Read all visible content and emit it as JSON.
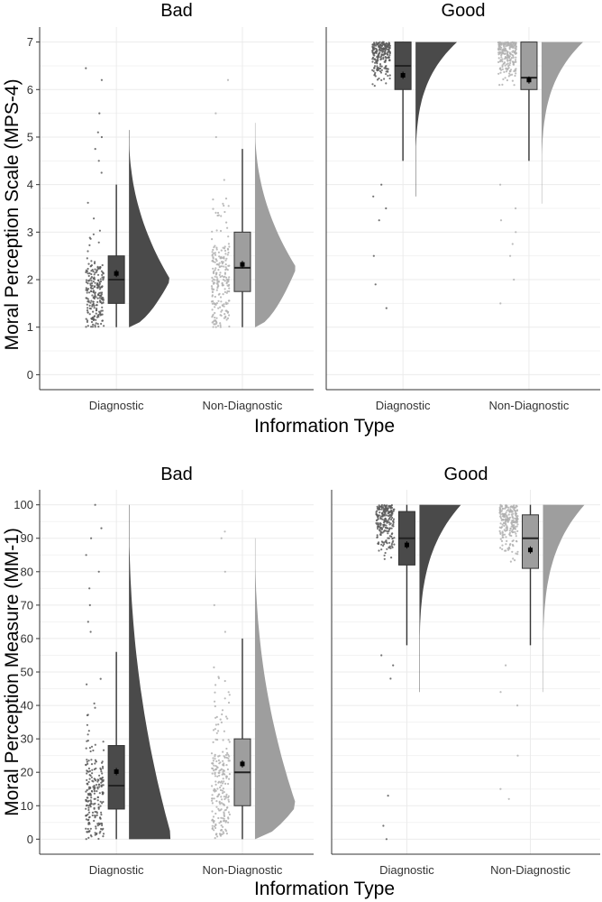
{
  "chart_data": [
    {
      "type": "raincloud",
      "ylabel": "Moral Perception Scale (MPS-4)",
      "xlabel": "Information Type",
      "ylim": [
        0,
        7
      ],
      "yticks": [
        0,
        1,
        2,
        3,
        4,
        5,
        6,
        7
      ],
      "categories": [
        "Diagnostic",
        "Non-Diagnostic"
      ],
      "facets": [
        {
          "title": "Bad",
          "groups": [
            {
              "category": "Diagnostic",
              "color": "#4a4a4a",
              "q1": 1.5,
              "median": 2.0,
              "q3": 2.5,
              "whisker_low": 1.0,
              "whisker_high": 4.0,
              "mean": 2.13,
              "density_min": 1.0,
              "density_max": 5.15,
              "density_peak": 2.0,
              "outliers": [
                4.25,
                4.5,
                4.75,
                5.0,
                5.1,
                5.5,
                6.2,
                6.45
              ]
            },
            {
              "category": "Non-Diagnostic",
              "color": "#9e9e9e",
              "q1": 1.75,
              "median": 2.25,
              "q3": 3.0,
              "whisker_low": 1.0,
              "whisker_high": 4.75,
              "mean": 2.32,
              "density_min": 1.0,
              "density_max": 5.3,
              "density_peak": 2.25,
              "outliers": [
                5.0,
                5.5,
                6.2
              ]
            }
          ]
        },
        {
          "title": "Good",
          "groups": [
            {
              "category": "Diagnostic",
              "color": "#4a4a4a",
              "q1": 6.0,
              "median": 6.5,
              "q3": 7.0,
              "whisker_low": 4.5,
              "whisker_high": 7.0,
              "mean": 6.3,
              "density_min": 3.75,
              "density_max": 7.0,
              "density_peak": 7.0,
              "outliers": [
                1.4,
                1.9,
                2.5,
                3.25,
                3.5,
                3.75,
                4.0
              ]
            },
            {
              "category": "Non-Diagnostic",
              "color": "#9e9e9e",
              "q1": 6.0,
              "median": 6.25,
              "q3": 7.0,
              "whisker_low": 4.5,
              "whisker_high": 7.0,
              "mean": 6.2,
              "density_min": 3.6,
              "density_max": 7.0,
              "density_peak": 7.0,
              "outliers": [
                1.5,
                2.0,
                2.5,
                2.75,
                3.0,
                3.25,
                3.5,
                4.0
              ]
            }
          ]
        }
      ]
    },
    {
      "type": "raincloud",
      "ylabel": "Moral Perception Measure (MM-1)",
      "xlabel": "Information Type",
      "ylim": [
        0,
        100
      ],
      "yticks": [
        0,
        10,
        20,
        30,
        40,
        50,
        60,
        70,
        80,
        90,
        100
      ],
      "categories": [
        "Diagnostic",
        "Non-Diagnostic"
      ],
      "facets": [
        {
          "title": "Bad",
          "groups": [
            {
              "category": "Diagnostic",
              "color": "#4a4a4a",
              "q1": 9,
              "median": 16,
              "q3": 28,
              "whisker_low": 0,
              "whisker_high": 56,
              "mean": 20.2,
              "density_min": 0,
              "density_max": 100,
              "density_peak": 2,
              "outliers": [
                62,
                65,
                70,
                75,
                80,
                85,
                90,
                93,
                100
              ]
            },
            {
              "category": "Non-Diagnostic",
              "color": "#9e9e9e",
              "q1": 10,
              "median": 20,
              "q3": 30,
              "whisker_low": 0,
              "whisker_high": 60,
              "mean": 22.5,
              "density_min": 0,
              "density_max": 90,
              "density_peak": 10,
              "outliers": [
                62,
                70,
                80,
                90,
                92
              ]
            }
          ]
        },
        {
          "title": "Good",
          "groups": [
            {
              "category": "Diagnostic",
              "color": "#4a4a4a",
              "q1": 82,
              "median": 90,
              "q3": 98,
              "whisker_low": 58,
              "whisker_high": 100,
              "mean": 88,
              "density_min": 44,
              "density_max": 100,
              "density_peak": 100,
              "outliers": [
                0,
                4,
                13,
                48,
                52,
                55
              ]
            },
            {
              "category": "Non-Diagnostic",
              "color": "#9e9e9e",
              "q1": 81,
              "median": 90,
              "q3": 97,
              "whisker_low": 58,
              "whisker_high": 100,
              "mean": 86.5,
              "density_min": 44,
              "density_max": 100,
              "density_peak": 100,
              "outliers": [
                12,
                15,
                25,
                40,
                44,
                52
              ]
            }
          ]
        }
      ]
    }
  ]
}
